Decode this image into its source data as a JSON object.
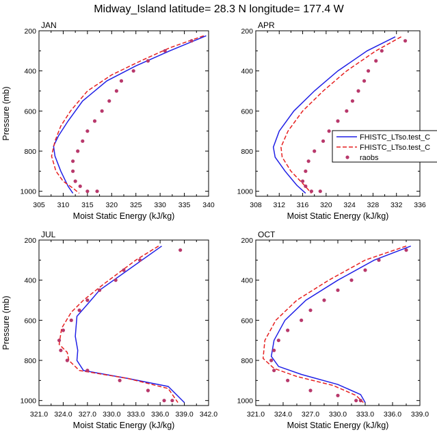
{
  "figure": {
    "title": "Midway_Island  latitude= 28.3 N longitude= 177.4 W"
  },
  "legend": {
    "entries": [
      {
        "label": "FHISTC_LTso.test_C",
        "color": "#1f1fe6",
        "style": "solid"
      },
      {
        "label": "FHISTC_LTso.test_C",
        "color": "#e61f1f",
        "style": "dashed"
      },
      {
        "label": "raobs",
        "color": "#b8386b",
        "style": "dots"
      }
    ]
  },
  "chart_data": [
    {
      "type": "line",
      "title": "JAN",
      "xlabel": "Moist Static Energy (kJ/kg)",
      "ylabel": "Pressure (mb)",
      "xlim": [
        305,
        340
      ],
      "ylim": [
        1025,
        200
      ],
      "xticks": [
        305,
        310,
        315,
        320,
        325,
        330,
        335,
        340
      ],
      "xticklabels": [
        "305",
        "310",
        "315",
        "320",
        "325",
        "330",
        "335",
        "340"
      ],
      "yticks": [
        200,
        400,
        600,
        800,
        1000
      ],
      "yticklabels": [
        "200",
        "400",
        "600",
        "800",
        "1000"
      ],
      "series": [
        {
          "name": "FHISTC_LTso.test_C (blue)",
          "color": "#1f1fe6",
          "dash": "",
          "x": [
            339.5,
            332,
            325,
            319,
            314,
            311,
            309,
            308,
            308.3,
            309.5,
            311,
            312
          ],
          "y": [
            225,
            300,
            375,
            450,
            550,
            650,
            725,
            775,
            825,
            900,
            975,
            1010
          ]
        },
        {
          "name": "FHISTC_LTso.test_C (red)",
          "color": "#e61f1f",
          "dash": "6,3",
          "x": [
            339,
            332,
            326,
            320,
            315,
            311.5,
            309.5,
            308.3,
            307.6,
            308.5,
            310,
            312.3,
            313.3
          ],
          "y": [
            225,
            285,
            350,
            420,
            500,
            600,
            675,
            750,
            825,
            900,
            950,
            990,
            1010
          ]
        },
        {
          "name": "raobs",
          "color": "#b8386b",
          "type": "scatter",
          "x": [
            336.5,
            331,
            327.5,
            324.5,
            322,
            321,
            319.5,
            318,
            316.5,
            315,
            314,
            313,
            312,
            312,
            312.5,
            313.5,
            315,
            317
          ],
          "y": [
            250,
            300,
            350,
            400,
            450,
            500,
            550,
            600,
            650,
            700,
            750,
            800,
            850,
            900,
            950,
            975,
            1000,
            1000
          ]
        }
      ]
    },
    {
      "type": "line",
      "title": "APR",
      "xlabel": "Moist Static Energy (kJ/kg)",
      "ylabel": "",
      "xlim": [
        308,
        336
      ],
      "ylim": [
        1025,
        200
      ],
      "xticks": [
        308,
        312,
        316,
        320,
        324,
        328,
        332,
        336
      ],
      "xticklabels": [
        "308",
        "312",
        "316",
        "320",
        "324",
        "328",
        "332",
        "336"
      ],
      "yticks": [
        200,
        400,
        600,
        800,
        1000
      ],
      "yticklabels": [
        "200",
        "400",
        "600",
        "800",
        "1000"
      ],
      "series": [
        {
          "name": "FHISTC_LTso.test_C (blue)",
          "color": "#1f1fe6",
          "dash": "",
          "x": [
            331.8,
            327,
            322,
            318,
            314.5,
            312,
            311,
            311.3,
            313,
            315,
            316.5
          ],
          "y": [
            230,
            300,
            400,
            500,
            600,
            700,
            780,
            830,
            900,
            970,
            1010
          ]
        },
        {
          "name": "FHISTC_LTso.test_C (red)",
          "color": "#e61f1f",
          "dash": "6,3",
          "x": [
            332.8,
            328.5,
            323.5,
            319.5,
            316,
            313.5,
            312.3,
            312.5,
            314,
            316.3,
            317.5
          ],
          "y": [
            230,
            300,
            400,
            500,
            600,
            700,
            780,
            830,
            900,
            970,
            1010
          ]
        },
        {
          "name": "raobs",
          "color": "#b8386b",
          "type": "scatter",
          "x": [
            333.5,
            329.5,
            328.5,
            327.2,
            326.5,
            325.5,
            324.5,
            323.5,
            322,
            320.5,
            319.5,
            318,
            317,
            316.5,
            316,
            316.5,
            317.5,
            319
          ],
          "y": [
            250,
            300,
            350,
            400,
            450,
            500,
            550,
            600,
            650,
            700,
            750,
            800,
            850,
            900,
            950,
            975,
            1000,
            1000
          ]
        }
      ]
    },
    {
      "type": "line",
      "title": "JUL",
      "xlabel": "Moist Static Energy (kJ/kg)",
      "ylabel": "Pressure (mb)",
      "xlim": [
        321,
        342
      ],
      "ylim": [
        1025,
        200
      ],
      "xticks": [
        321,
        324,
        327,
        330,
        333,
        336,
        339,
        342
      ],
      "xticklabels": [
        "321.0",
        "324.0",
        "327.0",
        "330.0",
        "333.0",
        "336.0",
        "339.0",
        "342.0"
      ],
      "yticks": [
        200,
        400,
        600,
        800,
        1000
      ],
      "yticklabels": [
        "200",
        "400",
        "600",
        "800",
        "1000"
      ],
      "series": [
        {
          "name": "FHISTC_LTso.test_C (blue)",
          "color": "#1f1fe6",
          "dash": "",
          "x": [
            336.2,
            332,
            328.5,
            327,
            325.7,
            325.5,
            325.8,
            325.7,
            326.5,
            332,
            337,
            339
          ],
          "y": [
            230,
            350,
            450,
            520,
            580,
            680,
            750,
            800,
            850,
            890,
            930,
            1010
          ]
        },
        {
          "name": "FHISTC_LTso.test_C (red)",
          "color": "#e61f1f",
          "dash": "6,3",
          "x": [
            335.8,
            333,
            329,
            326.5,
            325,
            323.8,
            323.5,
            324.5,
            324.7,
            326,
            332,
            337,
            338.2
          ],
          "y": [
            230,
            300,
            420,
            500,
            560,
            640,
            720,
            760,
            800,
            850,
            890,
            940,
            1010
          ]
        },
        {
          "name": "raobs",
          "color": "#b8386b",
          "type": "scatter",
          "x": [
            338.5,
            333.5,
            331.5,
            330.5,
            328.5,
            327,
            326,
            325,
            324,
            323.5,
            323.7,
            324.5,
            327,
            331,
            334.5,
            336.5,
            337.5
          ],
          "y": [
            250,
            300,
            350,
            400,
            450,
            500,
            550,
            600,
            650,
            700,
            750,
            800,
            850,
            900,
            950,
            1000,
            1000
          ]
        }
      ]
    },
    {
      "type": "line",
      "title": "OCT",
      "xlabel": "Moist Static Energy (kJ/kg)",
      "ylabel": "",
      "xlim": [
        321,
        339
      ],
      "ylim": [
        1025,
        200
      ],
      "xticks": [
        321,
        324,
        327,
        330,
        333,
        336,
        339
      ],
      "xticklabels": [
        "321.0",
        "324.0",
        "327.0",
        "330.0",
        "333.0",
        "336.0",
        "339.0"
      ],
      "yticks": [
        200,
        400,
        600,
        800,
        1000
      ],
      "yticklabels": [
        "200",
        "400",
        "600",
        "800",
        "1000"
      ],
      "series": [
        {
          "name": "FHISTC_LTso.test_C (blue)",
          "color": "#1f1fe6",
          "dash": "",
          "x": [
            338,
            334,
            330,
            326.5,
            324.2,
            323,
            322.7,
            323.5,
            326,
            330,
            332.5,
            333
          ],
          "y": [
            230,
            300,
            400,
            500,
            600,
            700,
            780,
            830,
            870,
            920,
            970,
            1010
          ]
        },
        {
          "name": "FHISTC_LTso.test_C (red)",
          "color": "#e61f1f",
          "dash": "6,3",
          "x": [
            337.5,
            333,
            329,
            325.5,
            323.2,
            322,
            321.8,
            323,
            325.5,
            329.5,
            332,
            332.8
          ],
          "y": [
            230,
            300,
            400,
            500,
            600,
            700,
            790,
            840,
            880,
            925,
            975,
            1010
          ]
        },
        {
          "name": "raobs",
          "color": "#b8386b",
          "type": "scatter",
          "x": [
            337.5,
            334.5,
            333,
            331.5,
            330,
            328.5,
            327,
            326,
            324.5,
            323.5,
            323,
            322.7,
            323,
            324.5,
            327,
            330,
            332,
            332.5
          ],
          "y": [
            250,
            300,
            350,
            400,
            450,
            500,
            550,
            600,
            650,
            700,
            750,
            800,
            850,
            900,
            950,
            975,
            1000,
            1000
          ]
        }
      ]
    }
  ]
}
